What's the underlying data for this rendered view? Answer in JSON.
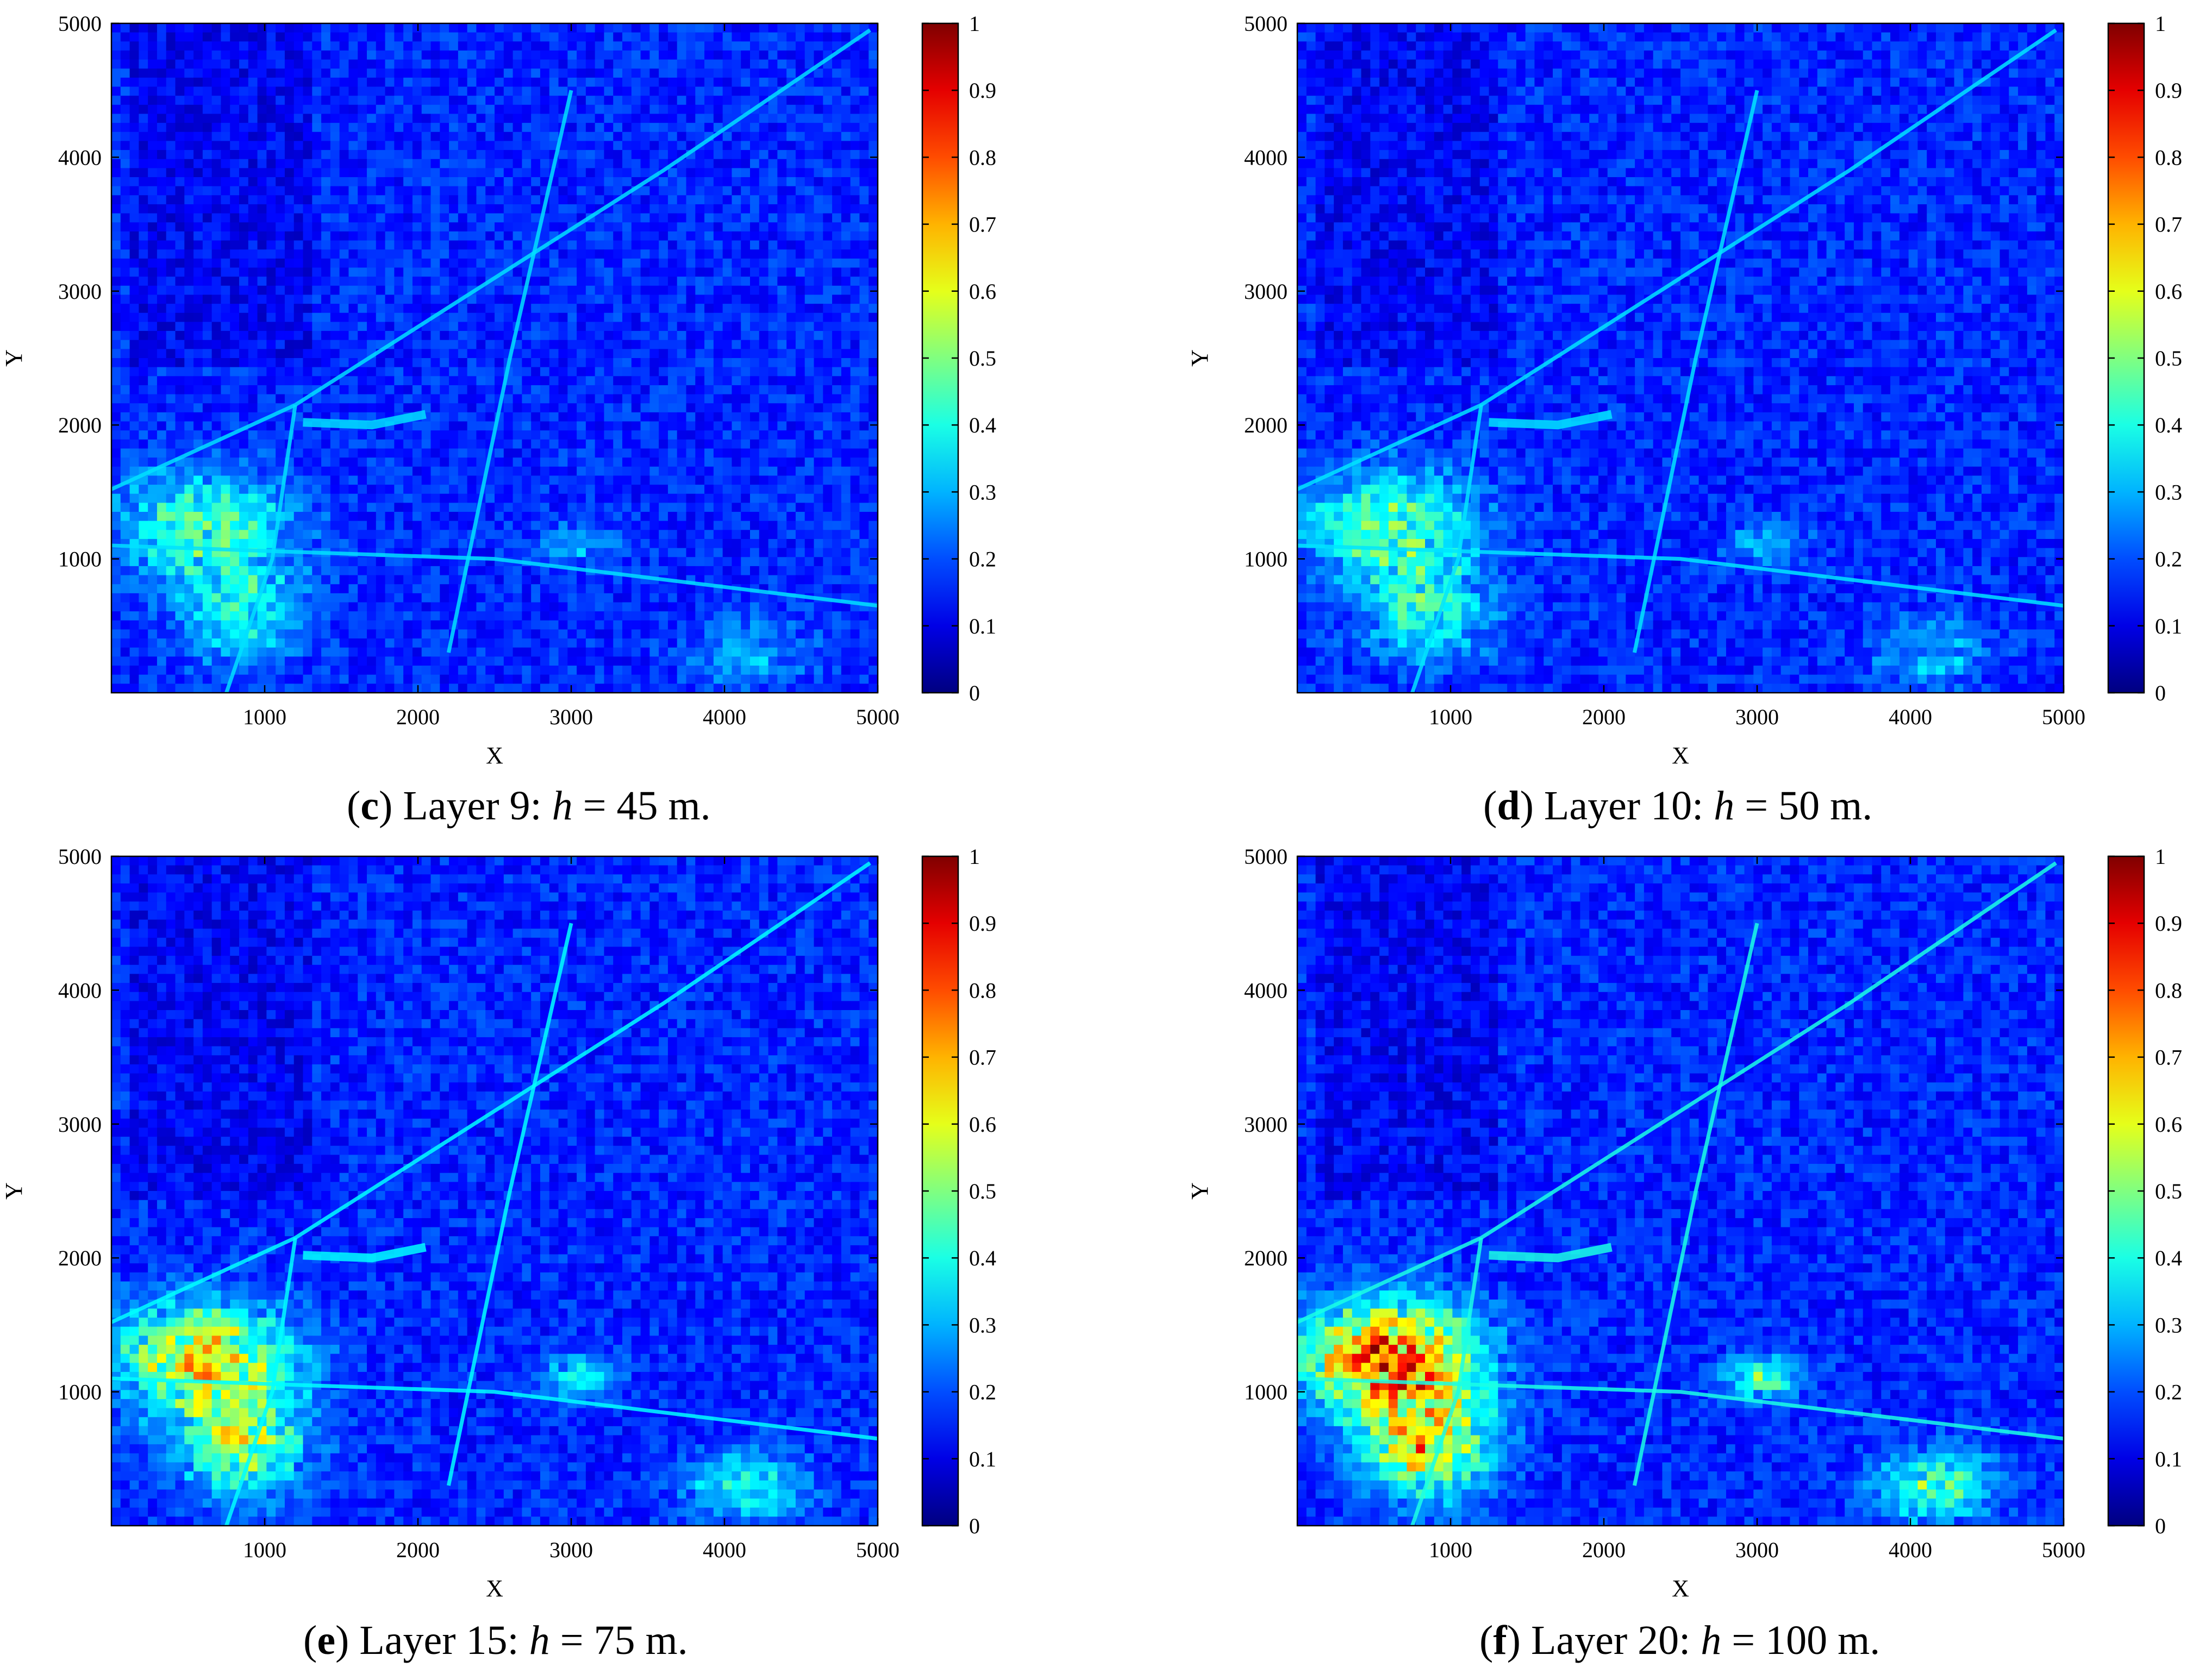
{
  "chart_data": [
    {
      "type": "heatmap",
      "caption": {
        "letter": "c",
        "text1": " Layer 9: ",
        "var": "h",
        "text2": " = 45 m."
      },
      "xlabel": "X",
      "ylabel": "Y",
      "xlim": [
        0,
        5000
      ],
      "ylim": [
        0,
        5000
      ],
      "xticks": [
        1000,
        2000,
        3000,
        4000,
        5000
      ],
      "yticks": [
        1000,
        2000,
        3000,
        4000,
        5000
      ],
      "colorbar": {
        "min": 0,
        "max": 1,
        "ticks": [
          0,
          0.1,
          0.2,
          0.3,
          0.4,
          0.5,
          0.6,
          0.7,
          0.8,
          0.9,
          1
        ],
        "colormap": "jet"
      },
      "intensity": 0.45
    },
    {
      "type": "heatmap",
      "caption": {
        "letter": "d",
        "text1": " Layer 10: ",
        "var": "h",
        "text2": " = 50 m."
      },
      "xlabel": "X",
      "ylabel": "Y",
      "xlim": [
        0,
        5000
      ],
      "ylim": [
        0,
        5000
      ],
      "xticks": [
        1000,
        2000,
        3000,
        4000,
        5000
      ],
      "yticks": [
        1000,
        2000,
        3000,
        4000,
        5000
      ],
      "colorbar": {
        "min": 0,
        "max": 1,
        "ticks": [
          0,
          0.1,
          0.2,
          0.3,
          0.4,
          0.5,
          0.6,
          0.7,
          0.8,
          0.9,
          1
        ],
        "colormap": "jet"
      },
      "intensity": 0.5
    },
    {
      "type": "heatmap",
      "caption": {
        "letter": "e",
        "text1": " Layer 15: ",
        "var": "h",
        "text2": " = 75 m."
      },
      "xlabel": "X",
      "ylabel": "Y",
      "xlim": [
        0,
        5000
      ],
      "ylim": [
        0,
        5000
      ],
      "xticks": [
        1000,
        2000,
        3000,
        4000,
        5000
      ],
      "yticks": [
        1000,
        2000,
        3000,
        4000,
        5000
      ],
      "colorbar": {
        "min": 0,
        "max": 1,
        "ticks": [
          0,
          0.1,
          0.2,
          0.3,
          0.4,
          0.5,
          0.6,
          0.7,
          0.8,
          0.9,
          1
        ],
        "colormap": "jet"
      },
      "intensity": 0.75
    },
    {
      "type": "heatmap",
      "caption": {
        "letter": "f",
        "text1": " Layer 20: ",
        "var": "h",
        "text2": " = 100 m."
      },
      "xlabel": "X",
      "ylabel": "Y",
      "xlim": [
        0,
        5000
      ],
      "ylim": [
        0,
        5000
      ],
      "xticks": [
        1000,
        2000,
        3000,
        4000,
        5000
      ],
      "yticks": [
        1000,
        2000,
        3000,
        4000,
        5000
      ],
      "colorbar": {
        "min": 0,
        "max": 1,
        "ticks": [
          0,
          0.1,
          0.2,
          0.3,
          0.4,
          0.5,
          0.6,
          0.7,
          0.8,
          0.9,
          1
        ],
        "colormap": "jet"
      },
      "intensity": 1.0
    }
  ]
}
